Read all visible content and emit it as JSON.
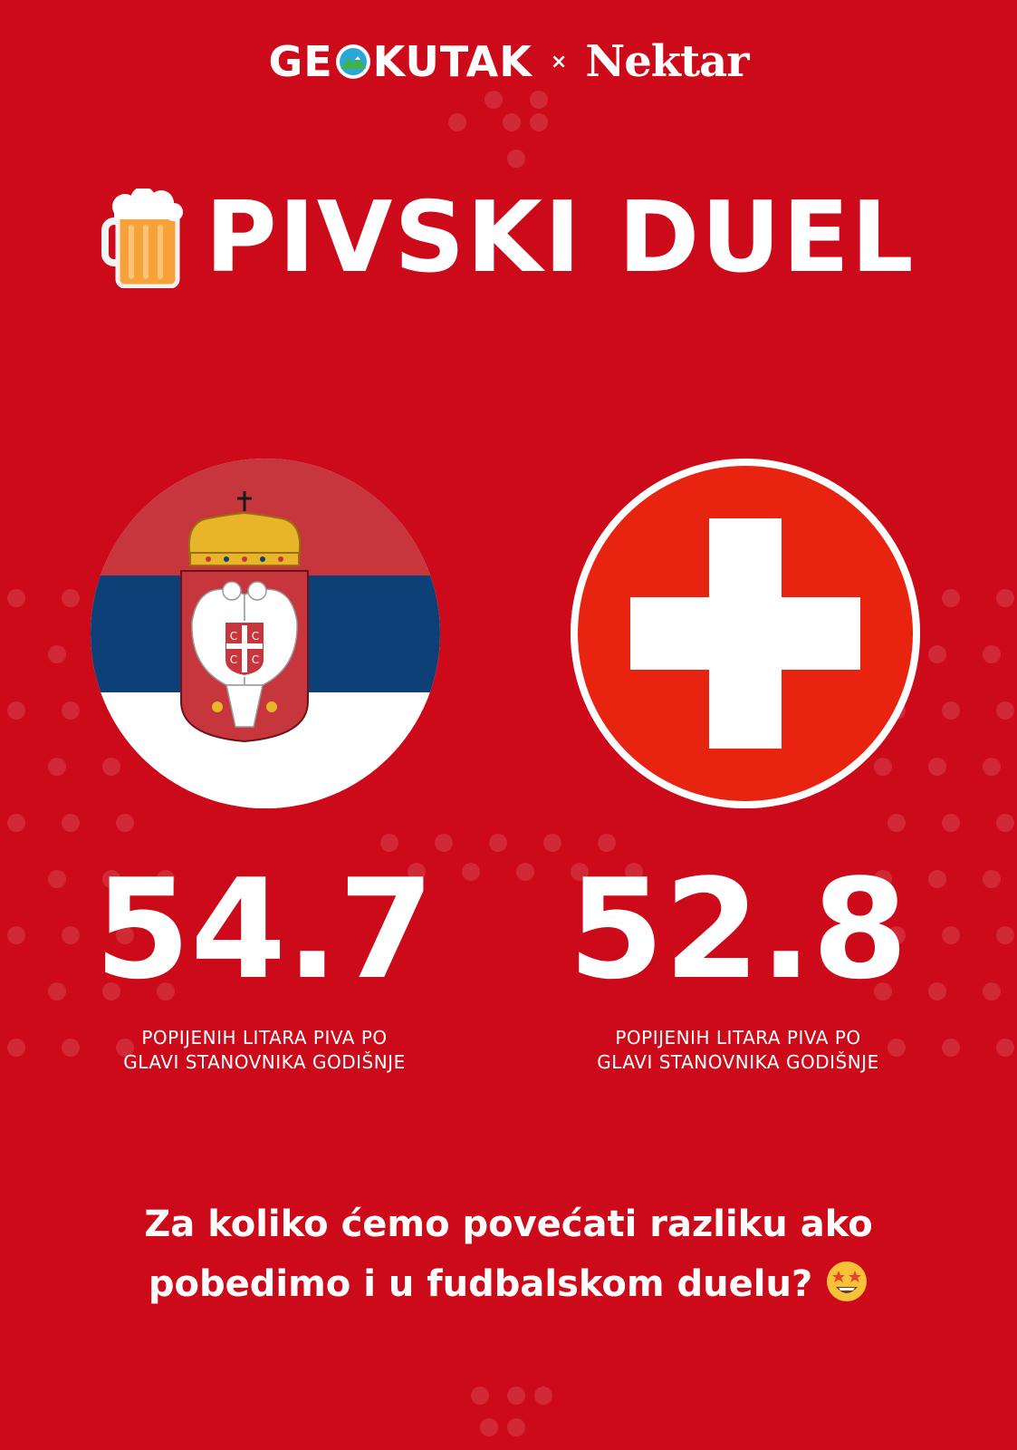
{
  "brand": {
    "left_part1": "GE",
    "left_part2": "KUTAK",
    "separator": "×",
    "right": "Nektar"
  },
  "title": {
    "icon": "beer-mug-icon",
    "text": "PIVSKI DUEL"
  },
  "countries": [
    {
      "flag": "serbia-flag",
      "value": "54.7",
      "caption_line1": "POPIJENIH LITARA PIVA PO",
      "caption_line2": "GLAVI STANOVNIKA GODIŠNJE"
    },
    {
      "flag": "switzerland-flag",
      "value": "52.8",
      "caption_line1": "POPIJENIH LITARA PIVA PO",
      "caption_line2": "GLAVI STANOVNIKA GODIŠNJE"
    }
  ],
  "question": {
    "line1": "Za koliko ćemo povećati razliku ako",
    "line2": "pobedimo i u fudbalskom duelu?",
    "emoji": "star-struck-emoji"
  },
  "colors": {
    "background": "#cc0a19",
    "serbia_red": "#c6363c",
    "serbia_blue": "#0c4076",
    "swiss_red": "#e8230f"
  }
}
